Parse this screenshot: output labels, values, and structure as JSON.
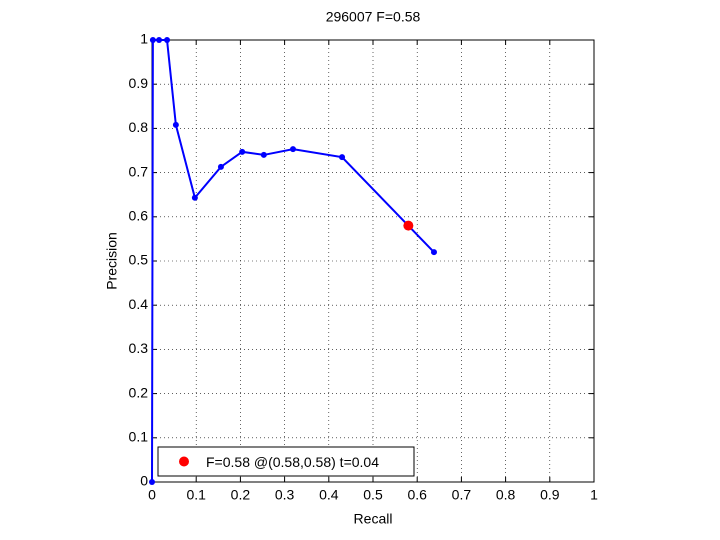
{
  "chart_data": {
    "type": "line",
    "title": "296007 F=0.58",
    "x_label": "Recall",
    "y_label": "Precision",
    "xlim": [
      0,
      1
    ],
    "ylim": [
      0,
      1
    ],
    "xticks": [
      0,
      0.1,
      0.2,
      0.3,
      0.4,
      0.5,
      0.6,
      0.7,
      0.8,
      0.9,
      1
    ],
    "yticks": [
      0,
      0.1,
      0.2,
      0.3,
      0.4,
      0.5,
      0.6,
      0.7,
      0.8,
      0.9,
      1
    ],
    "grid": true,
    "legend": "lower left",
    "series": [
      {
        "color": "#0000ff",
        "x": [
          0,
          0.002,
          0.016,
          0.034,
          0.054,
          0.097,
          0.156,
          0.204,
          0.253,
          0.319,
          0.43,
          0.638
        ],
        "values": [
          0,
          1,
          1,
          1,
          0.808,
          0.643,
          0.713,
          0.747,
          0.74,
          0.753,
          0.735,
          0.52
        ]
      },
      {
        "name": "F=0.58 @(0.58,0.58) t=0.04",
        "color": "#ff0000",
        "x": [
          0.58
        ],
        "values": [
          0.58
        ]
      }
    ]
  }
}
